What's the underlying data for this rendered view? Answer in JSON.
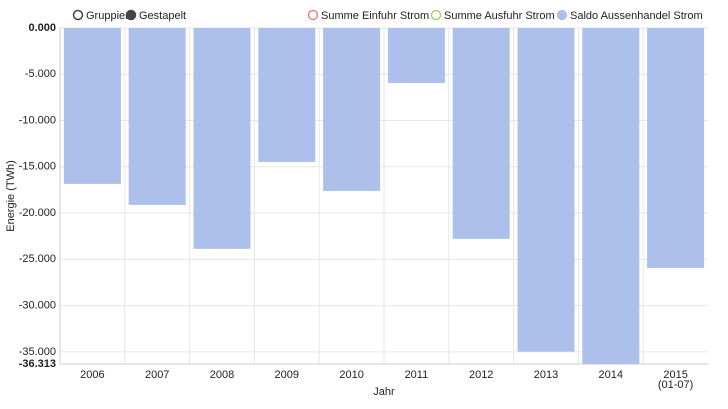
{
  "chart_data": {
    "type": "bar",
    "modes": [
      "Gruppiert",
      "Gestapelt"
    ],
    "selected_mode": "Gestapelt",
    "categories": [
      "2006",
      "2007",
      "2008",
      "2009",
      "2010",
      "2011",
      "2012",
      "2013",
      "2014",
      "2015"
    ],
    "category_notes": [
      null,
      null,
      null,
      null,
      null,
      null,
      null,
      null,
      null,
      "(01-07)"
    ],
    "series": [
      {
        "name": "Summe Einfuhr Strom",
        "color": "#e57373",
        "visible": false,
        "values": [
          null,
          null,
          null,
          null,
          null,
          null,
          null,
          null,
          null,
          null
        ]
      },
      {
        "name": "Summe Ausfuhr Strom",
        "color": "#9ccc65",
        "visible": false,
        "values": [
          null,
          null,
          null,
          null,
          null,
          null,
          null,
          null,
          null,
          null
        ]
      },
      {
        "name": "Saldo Aussenhandel Strom",
        "color": "#adc0ec",
        "visible": true,
        "values": [
          -16.85,
          -19.12,
          -23.87,
          -14.48,
          -17.61,
          -5.94,
          -22.79,
          -34.98,
          -36.313,
          -25.93
        ]
      }
    ],
    "x_label": "Jahr",
    "y_label": "Energie (TWh)",
    "ylim": [
      -36.313,
      0
    ],
    "yticks": [
      {
        "value": 0,
        "label": "0.000"
      },
      {
        "value": -5,
        "label": "-5.000"
      },
      {
        "value": -10,
        "label": "-10.000"
      },
      {
        "value": -15,
        "label": "-15.000"
      },
      {
        "value": -20,
        "label": "-20.000"
      },
      {
        "value": -25,
        "label": "-25.000"
      },
      {
        "value": -30,
        "label": "-30.000"
      },
      {
        "value": -35,
        "label": "-35.000"
      },
      {
        "value": -36.313,
        "label": "-36.313"
      }
    ],
    "grid": true
  }
}
